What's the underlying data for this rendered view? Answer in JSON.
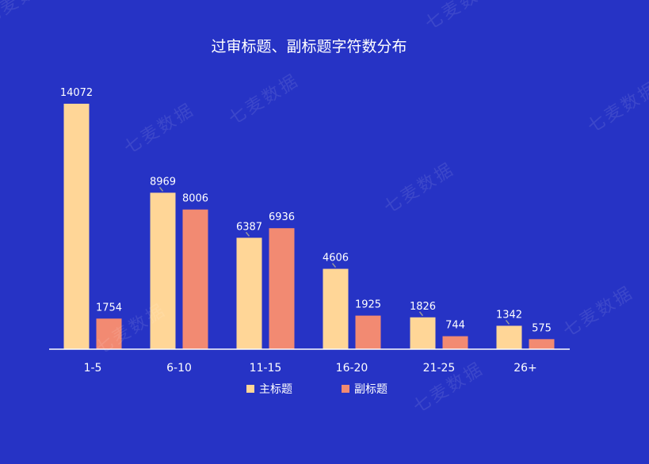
{
  "watermark": "七麦数据",
  "colors": {
    "background": "#2633C5",
    "main_title": "#FFD697",
    "sub_title": "#F28A72",
    "text": "#FFFFFF",
    "axis": "#FFFFFF",
    "leader": "#9A9A9A"
  },
  "chart_data": {
    "type": "bar",
    "title": "过审标题、副标题字符数分布",
    "categories": [
      "1-5",
      "6-10",
      "11-15",
      "16-20",
      "21-25",
      "26+"
    ],
    "series": [
      {
        "name": "主标题",
        "values": [
          14072,
          8969,
          6387,
          4606,
          1826,
          1342
        ]
      },
      {
        "name": "副标题",
        "values": [
          1754,
          8006,
          6936,
          1925,
          744,
          575
        ]
      }
    ],
    "ylim": [
      0,
      14072
    ],
    "grid": false,
    "legend_position": "bottom-center",
    "xlabel": "",
    "ylabel": ""
  }
}
